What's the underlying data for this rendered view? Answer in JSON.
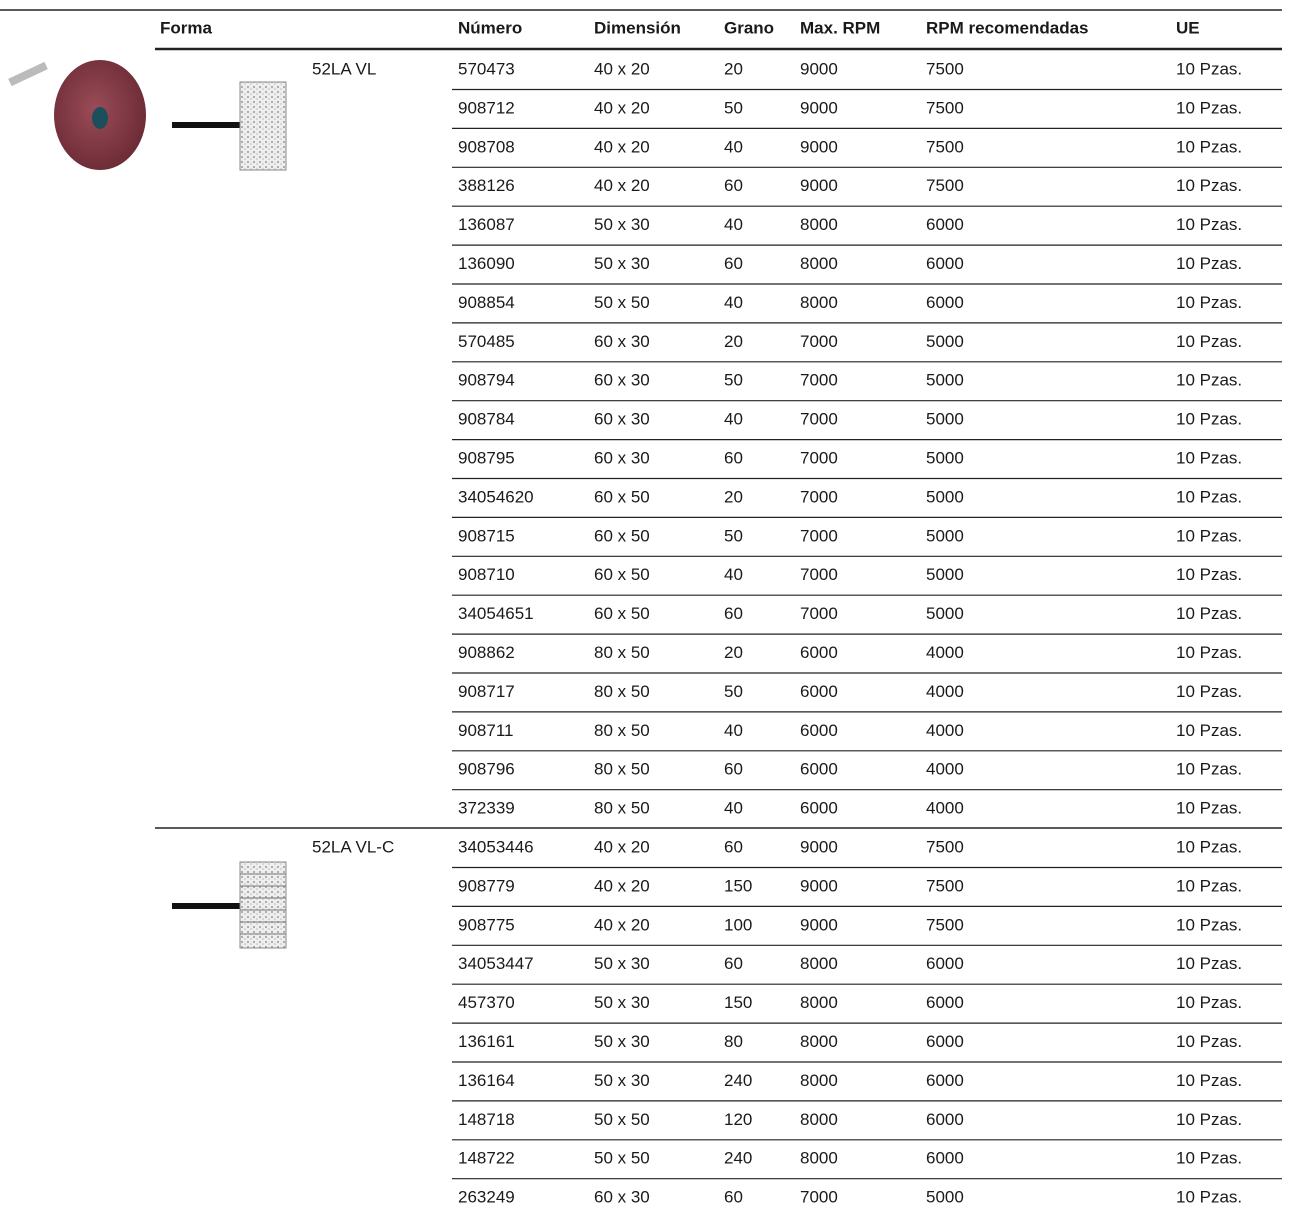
{
  "table": {
    "header": [
      "Forma",
      "Número",
      "Dimensión",
      "Grano",
      "Max. RPM",
      "RPM recomendadas",
      "UE"
    ],
    "groups": [
      {
        "name": "52LA VL",
        "rows": [
          [
            570473,
            "40 x 20",
            20,
            9000,
            7500,
            "10 Pzas."
          ],
          [
            908712,
            "40 x 20",
            50,
            9000,
            7500,
            "10 Pzas."
          ],
          [
            908708,
            "40 x 20",
            40,
            9000,
            7500,
            "10 Pzas."
          ],
          [
            388126,
            "40 x 20",
            60,
            9000,
            7500,
            "10 Pzas."
          ],
          [
            136087,
            "50 x 30",
            40,
            8000,
            6000,
            "10 Pzas."
          ],
          [
            136090,
            "50 x 30",
            60,
            8000,
            6000,
            "10 Pzas."
          ],
          [
            908854,
            "50 x 50",
            40,
            8000,
            6000,
            "10 Pzas."
          ],
          [
            570485,
            "60 x 30",
            20,
            7000,
            5000,
            "10 Pzas."
          ],
          [
            908794,
            "60 x 30",
            50,
            7000,
            5000,
            "10 Pzas."
          ],
          [
            908784,
            "60 x 30",
            40,
            7000,
            5000,
            "10 Pzas."
          ],
          [
            908795,
            "60 x 30",
            60,
            7000,
            5000,
            "10 Pzas."
          ],
          [
            34054620,
            "60 x 50",
            20,
            7000,
            5000,
            "10 Pzas."
          ],
          [
            908715,
            "60 x 50",
            50,
            7000,
            5000,
            "10 Pzas."
          ],
          [
            908710,
            "60 x 50",
            40,
            7000,
            5000,
            "10 Pzas."
          ],
          [
            34054651,
            "60 x 50",
            60,
            7000,
            5000,
            "10 Pzas."
          ],
          [
            908862,
            "80 x 50",
            20,
            6000,
            4000,
            "10 Pzas."
          ],
          [
            908717,
            "80 x 50",
            50,
            6000,
            4000,
            "10 Pzas."
          ],
          [
            908711,
            "80 x 50",
            40,
            6000,
            4000,
            "10 Pzas."
          ],
          [
            908796,
            "80 x 50",
            60,
            6000,
            4000,
            "10 Pzas."
          ],
          [
            372339,
            "80 x 50",
            40,
            6000,
            4000,
            "10 Pzas."
          ]
        ]
      },
      {
        "name": "52LA VL-C",
        "rows": [
          [
            34053446,
            "40 x 20",
            60,
            9000,
            7500,
            "10 Pzas."
          ],
          [
            908779,
            "40 x 20",
            150,
            9000,
            7500,
            "10 Pzas."
          ],
          [
            908775,
            "40 x 20",
            100,
            9000,
            7500,
            "10 Pzas."
          ],
          [
            34053447,
            "50 x 30",
            60,
            8000,
            6000,
            "10 Pzas."
          ],
          [
            457370,
            "50 x 30",
            150,
            8000,
            6000,
            "10 Pzas."
          ],
          [
            136161,
            "50 x 30",
            80,
            8000,
            6000,
            "10 Pzas."
          ],
          [
            136164,
            "50 x 30",
            240,
            8000,
            6000,
            "10 Pzas."
          ],
          [
            148718,
            "50 x 50",
            120,
            8000,
            6000,
            "10 Pzas."
          ],
          [
            148722,
            "50 x 50",
            240,
            8000,
            6000,
            "10 Pzas."
          ],
          [
            263249,
            "60 x 30",
            60,
            7000,
            5000,
            "10 Pzas."
          ]
        ]
      }
    ]
  }
}
